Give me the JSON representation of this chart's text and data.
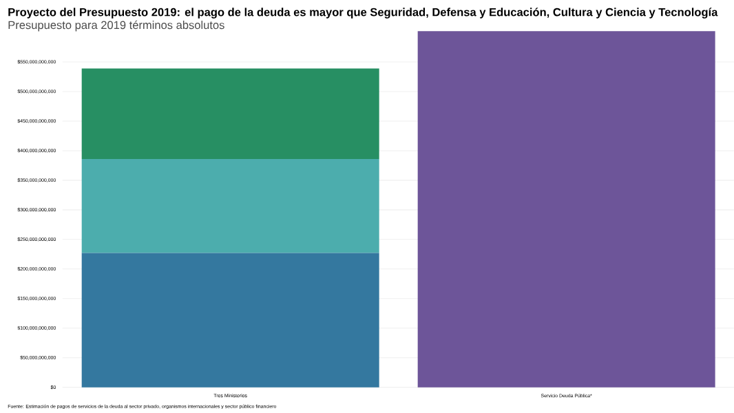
{
  "chart_data": {
    "type": "bar",
    "stacked": true,
    "title": "Proyecto del Presupuesto 2019: el pago de la deuda es mayor que Seguridad, Defensa y Educación, Cultura y Ciencia y Tecnología",
    "subtitle": "Presupuesto para 2019 términos absolutos",
    "categories": [
      "Tres Ministerios",
      "Servicio Deuda Pública*"
    ],
    "series": [
      {
        "color": "#34789f",
        "values": [
          227000000000,
          null
        ]
      },
      {
        "color": "#4cadad",
        "values": [
          159000000000,
          null
        ]
      },
      {
        "color": "#278f63",
        "values": [
          153000000000,
          null
        ]
      },
      {
        "color": "#6d5599",
        "values": [
          null,
          602000000000
        ]
      }
    ],
    "ylim": [
      0,
      602000000000
    ],
    "yticks": [
      {
        "value": 0,
        "label": "$0"
      },
      {
        "value": 50000000000,
        "label": "$50,000,000,000"
      },
      {
        "value": 100000000000,
        "label": "$100,000,000,000"
      },
      {
        "value": 150000000000,
        "label": "$150,000,000,000"
      },
      {
        "value": 200000000000,
        "label": "$200,000,000,000"
      },
      {
        "value": 250000000000,
        "label": "$250,000,000,000"
      },
      {
        "value": 300000000000,
        "label": "$300,000,000,000"
      },
      {
        "value": 350000000000,
        "label": "$350,000,000,000"
      },
      {
        "value": 400000000000,
        "label": "$400,000,000,000"
      },
      {
        "value": 450000000000,
        "label": "$450,000,000,000"
      },
      {
        "value": 500000000000,
        "label": "$500,000,000,000"
      },
      {
        "value": 550000000000,
        "label": "$550,000,000,000"
      }
    ],
    "grid": "y",
    "annotations": [
      "Fuente: Estimación de pagos de servicios de la deuda al sector privado, organismos internacionales y sector público financiero"
    ]
  }
}
